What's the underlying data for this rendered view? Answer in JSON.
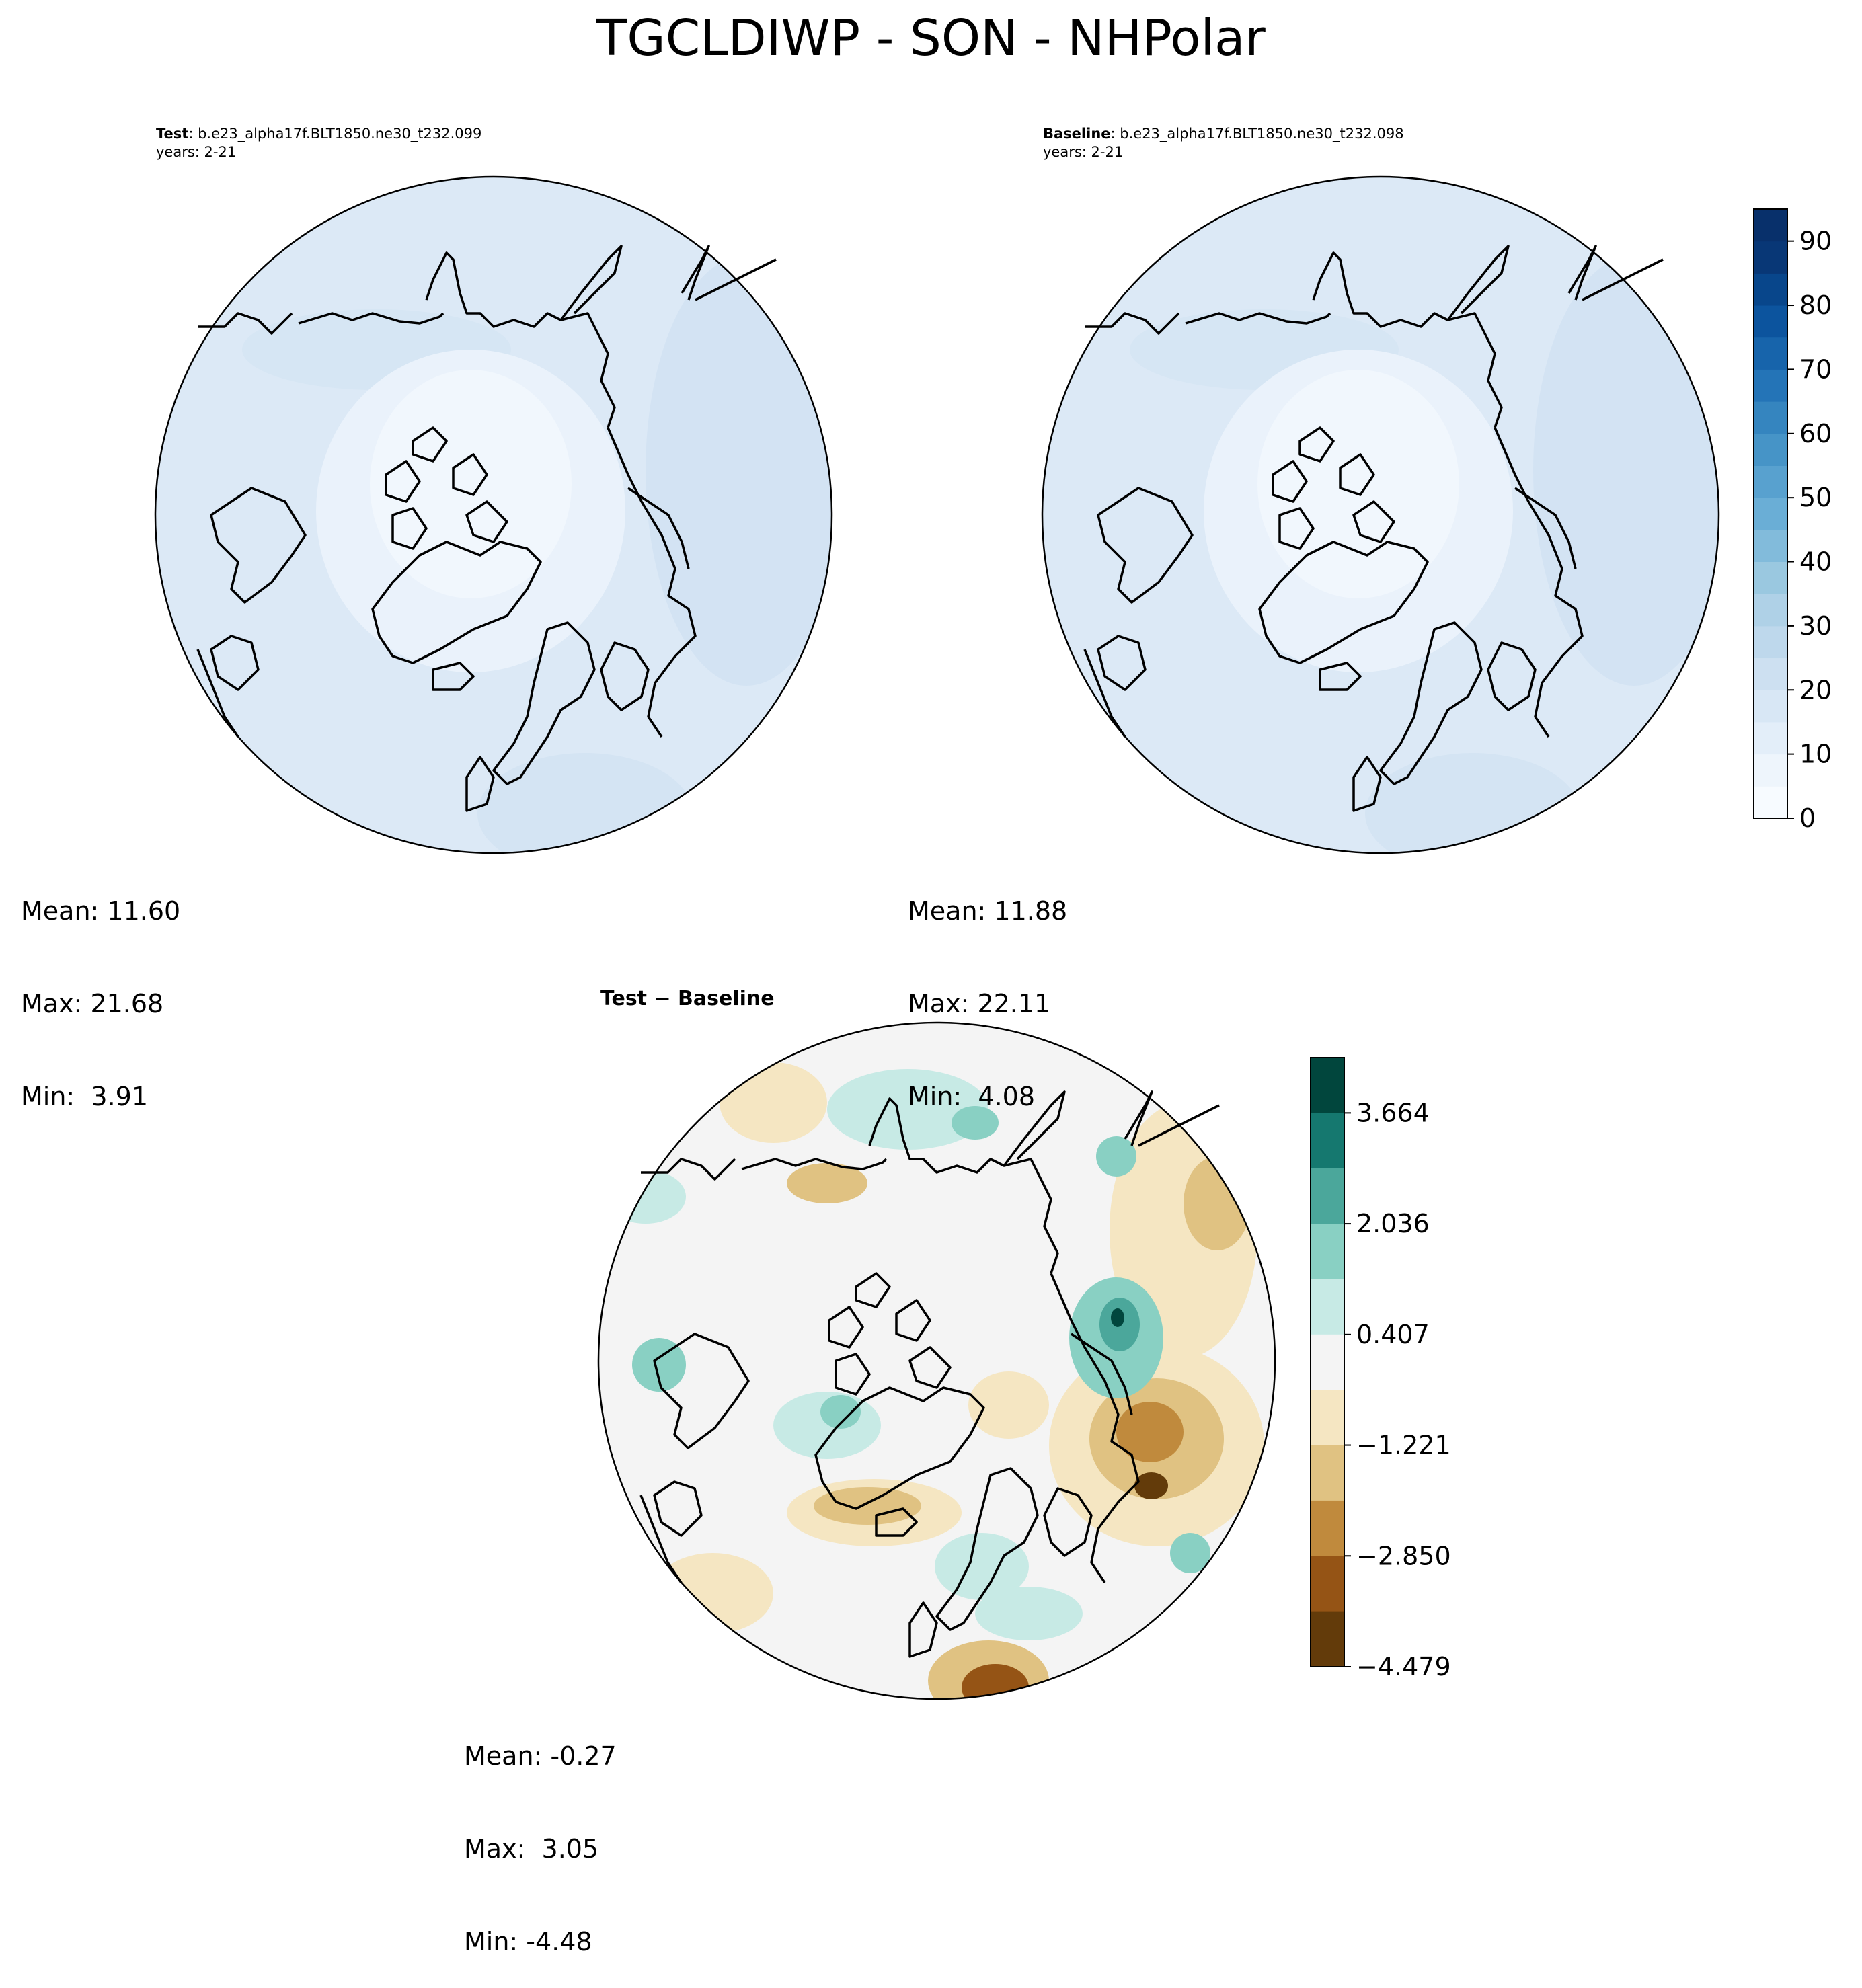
{
  "figure": {
    "title": "TGCLDIWP - SON - NHPolar"
  },
  "panels": {
    "test": {
      "label_bold": "Test",
      "label_case": ": b.e23_alpha17f.BLT1850.ne30_t232.099",
      "years": "years: 2-21",
      "mean": "Mean: 11.60",
      "max": "Max: 21.68",
      "min": "Min:  3.91"
    },
    "baseline": {
      "label_bold": "Baseline",
      "label_case": ": b.e23_alpha17f.BLT1850.ne30_t232.098",
      "years": "years: 2-21",
      "mean": "Mean: 11.88",
      "max": "Max: 22.11",
      "min": "Min:  4.08"
    },
    "diff": {
      "title": "Test − Baseline",
      "mean": "Mean: -0.27",
      "max": "Max:  3.05",
      "min": "Min: -4.48"
    }
  },
  "colorbars": {
    "field": {
      "ticks": [
        "0",
        "10",
        "20",
        "30",
        "40",
        "50",
        "60",
        "70",
        "80",
        "90"
      ],
      "range": [
        0,
        95
      ],
      "colors": [
        "#f7fbff",
        "#eef5fc",
        "#e3eef9",
        "#d8e7f5",
        "#cde0f1",
        "#bed8ec",
        "#afd1e7",
        "#9ac8e0",
        "#82bbdb",
        "#6aaed6",
        "#58a1cf",
        "#4694c7",
        "#3585bf",
        "#2474b7",
        "#1764ab",
        "#0c549e",
        "#08468b",
        "#083776",
        "#08306b"
      ]
    },
    "diff": {
      "ticks": [
        "3.664",
        "2.036",
        "0.407",
        "−1.221",
        "−2.850",
        "−4.479"
      ],
      "colors": [
        "#01463d",
        "#15786f",
        "#4ba79b",
        "#89d0c3",
        "#c7eae5",
        "#f4f4f4",
        "#f5e6c2",
        "#e0c282",
        "#c08a3d",
        "#955415",
        "#633b0a"
      ]
    }
  },
  "chart_data": {
    "type": "heatmap",
    "variable": "TGCLDIWP",
    "season": "SON",
    "region": "NHPolar",
    "panels": [
      {
        "name": "Test",
        "case": "b.e23_alpha17f.BLT1850.ne30_t232.099",
        "years": "2-21",
        "mean": 11.6,
        "max": 21.68,
        "min": 3.91
      },
      {
        "name": "Baseline",
        "case": "b.e23_alpha17f.BLT1850.ne30_t232.098",
        "years": "2-21",
        "mean": 11.88,
        "max": 22.11,
        "min": 4.08
      },
      {
        "name": "Test − Baseline",
        "mean": -0.27,
        "max": 3.05,
        "min": -4.48
      }
    ],
    "colorbar_field": {
      "ticks": [
        0,
        10,
        20,
        30,
        40,
        50,
        60,
        70,
        80,
        90
      ],
      "range": [
        0,
        95
      ]
    },
    "colorbar_diff": {
      "ticks": [
        3.664,
        2.036,
        0.407,
        -1.221,
        -2.85,
        -4.479
      ]
    }
  }
}
